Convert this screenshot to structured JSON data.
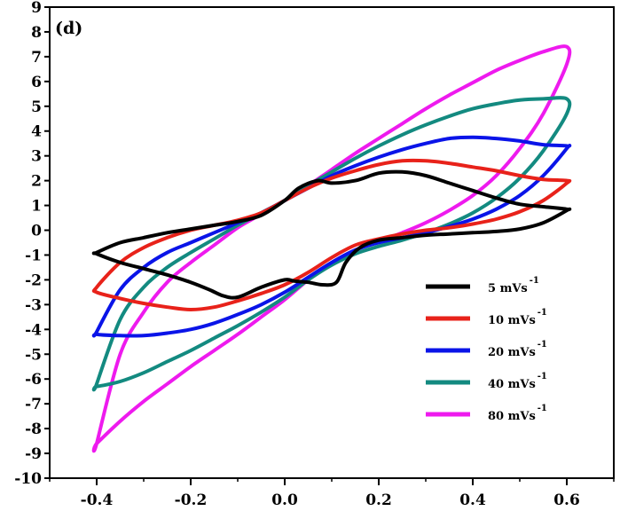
{
  "panel_label": "(d)",
  "chart_data": {
    "type": "line",
    "title": "",
    "xlabel": "",
    "ylabel": "",
    "xlim": [
      -0.5,
      0.7
    ],
    "ylim": [
      -10,
      9
    ],
    "x_ticks": [
      -0.4,
      -0.2,
      0.0,
      0.2,
      0.4,
      0.6
    ],
    "x_tick_labels": [
      "-0.4",
      "-0.2",
      "0.0",
      "0.2",
      "0.4",
      "0.6"
    ],
    "y_ticks": [
      -10,
      -9,
      -8,
      -7,
      -6,
      -5,
      -4,
      -3,
      -2,
      -1,
      0,
      1,
      2,
      3,
      4,
      5,
      6,
      7,
      8,
      9
    ],
    "y_tick_labels": [
      "-10",
      "-9",
      "-8",
      "-7",
      "-6",
      "-5",
      "-4",
      "-3",
      "-2",
      "-1",
      "0",
      "1",
      "2",
      "3",
      "4",
      "5",
      "6",
      "7",
      "8",
      "9"
    ],
    "grid": false,
    "legend_position": "lower-right",
    "series": [
      {
        "name": "5 mVs",
        "superscript": "-1",
        "color": "#000000",
        "x": [
          -0.4,
          -0.35,
          -0.3,
          -0.25,
          -0.2,
          -0.15,
          -0.1,
          -0.05,
          0.0,
          0.03,
          0.07,
          0.1,
          0.15,
          0.2,
          0.25,
          0.3,
          0.35,
          0.4,
          0.45,
          0.5,
          0.55,
          0.6,
          0.6,
          0.55,
          0.5,
          0.45,
          0.4,
          0.35,
          0.3,
          0.25,
          0.2,
          0.16,
          0.13,
          0.11,
          0.08,
          0.05,
          0.02,
          0.0,
          -0.05,
          -0.1,
          -0.13,
          -0.16,
          -0.2,
          -0.25,
          -0.3,
          -0.35,
          -0.4
        ],
        "y": [
          -0.9,
          -0.5,
          -0.3,
          -0.1,
          0.05,
          0.2,
          0.35,
          0.6,
          1.2,
          1.7,
          2.0,
          1.9,
          2.0,
          2.3,
          2.35,
          2.2,
          1.9,
          1.6,
          1.3,
          1.05,
          0.95,
          0.85,
          0.8,
          0.3,
          0.05,
          -0.05,
          -0.1,
          -0.15,
          -0.2,
          -0.3,
          -0.4,
          -0.7,
          -1.3,
          -2.1,
          -2.2,
          -2.1,
          -2.05,
          -2.0,
          -2.3,
          -2.7,
          -2.65,
          -2.4,
          -2.1,
          -1.8,
          -1.55,
          -1.3,
          -0.95
        ]
      },
      {
        "name": "10 mVs",
        "superscript": "-1",
        "color": "#e8221a",
        "x": [
          -0.4,
          -0.35,
          -0.3,
          -0.25,
          -0.2,
          -0.15,
          -0.1,
          -0.05,
          0.0,
          0.05,
          0.1,
          0.15,
          0.2,
          0.25,
          0.3,
          0.35,
          0.4,
          0.45,
          0.5,
          0.55,
          0.6,
          0.6,
          0.55,
          0.5,
          0.45,
          0.4,
          0.35,
          0.3,
          0.25,
          0.2,
          0.15,
          0.1,
          0.05,
          0.0,
          -0.05,
          -0.1,
          -0.15,
          -0.2,
          -0.25,
          -0.3,
          -0.35,
          -0.4
        ],
        "y": [
          -2.3,
          -1.3,
          -0.7,
          -0.3,
          0.0,
          0.2,
          0.4,
          0.7,
          1.2,
          1.7,
          2.1,
          2.4,
          2.65,
          2.8,
          2.8,
          2.7,
          2.55,
          2.4,
          2.2,
          2.05,
          2.0,
          1.9,
          1.2,
          0.75,
          0.45,
          0.25,
          0.1,
          0.0,
          -0.15,
          -0.35,
          -0.6,
          -1.1,
          -1.7,
          -2.2,
          -2.55,
          -2.85,
          -3.1,
          -3.2,
          -3.1,
          -2.95,
          -2.75,
          -2.5
        ]
      },
      {
        "name": "20 mVs",
        "superscript": "-1",
        "color": "#0a14e8",
        "x": [
          -0.4,
          -0.35,
          -0.3,
          -0.25,
          -0.2,
          -0.15,
          -0.1,
          -0.05,
          0.0,
          0.05,
          0.1,
          0.15,
          0.2,
          0.25,
          0.3,
          0.35,
          0.4,
          0.45,
          0.5,
          0.55,
          0.6,
          0.6,
          0.55,
          0.5,
          0.45,
          0.4,
          0.35,
          0.3,
          0.25,
          0.2,
          0.15,
          0.1,
          0.05,
          0.0,
          -0.05,
          -0.1,
          -0.15,
          -0.2,
          -0.25,
          -0.3,
          -0.35,
          -0.4
        ],
        "y": [
          -4.1,
          -2.4,
          -1.5,
          -0.9,
          -0.5,
          -0.1,
          0.3,
          0.7,
          1.2,
          1.7,
          2.2,
          2.6,
          2.95,
          3.25,
          3.5,
          3.7,
          3.75,
          3.7,
          3.6,
          3.45,
          3.4,
          3.3,
          2.2,
          1.4,
          0.85,
          0.45,
          0.15,
          -0.1,
          -0.3,
          -0.5,
          -0.8,
          -1.3,
          -1.9,
          -2.5,
          -3.0,
          -3.4,
          -3.75,
          -4.0,
          -4.15,
          -4.25,
          -4.25,
          -4.2
        ]
      },
      {
        "name": "40 mVs",
        "superscript": "-1",
        "color": "#138a80",
        "x": [
          -0.4,
          -0.35,
          -0.3,
          -0.25,
          -0.2,
          -0.15,
          -0.1,
          -0.05,
          0.0,
          0.05,
          0.1,
          0.15,
          0.2,
          0.25,
          0.3,
          0.35,
          0.4,
          0.45,
          0.5,
          0.55,
          0.6,
          0.6,
          0.55,
          0.5,
          0.45,
          0.4,
          0.35,
          0.3,
          0.25,
          0.2,
          0.15,
          0.1,
          0.05,
          0.0,
          -0.05,
          -0.1,
          -0.15,
          -0.2,
          -0.25,
          -0.3,
          -0.35,
          -0.4
        ],
        "y": [
          -6.2,
          -3.6,
          -2.3,
          -1.5,
          -0.9,
          -0.35,
          0.2,
          0.7,
          1.2,
          1.8,
          2.35,
          2.9,
          3.4,
          3.85,
          4.25,
          4.6,
          4.9,
          5.1,
          5.25,
          5.3,
          5.3,
          4.7,
          3.2,
          2.1,
          1.3,
          0.7,
          0.25,
          -0.1,
          -0.4,
          -0.65,
          -0.95,
          -1.4,
          -2.0,
          -2.7,
          -3.3,
          -3.85,
          -4.35,
          -4.85,
          -5.3,
          -5.75,
          -6.1,
          -6.3
        ]
      },
      {
        "name": "80 mVs",
        "superscript": "-1",
        "color": "#ee1aee",
        "x": [
          -0.4,
          -0.35,
          -0.3,
          -0.25,
          -0.2,
          -0.15,
          -0.1,
          -0.05,
          0.0,
          0.05,
          0.1,
          0.15,
          0.2,
          0.25,
          0.3,
          0.35,
          0.4,
          0.45,
          0.5,
          0.55,
          0.6,
          0.6,
          0.55,
          0.5,
          0.45,
          0.4,
          0.35,
          0.3,
          0.25,
          0.2,
          0.15,
          0.1,
          0.05,
          0.0,
          -0.05,
          -0.1,
          -0.15,
          -0.2,
          -0.25,
          -0.3,
          -0.35,
          -0.4
        ],
        "y": [
          -8.6,
          -5.0,
          -3.3,
          -2.1,
          -1.3,
          -0.6,
          0.1,
          0.65,
          1.2,
          1.8,
          2.45,
          3.1,
          3.7,
          4.3,
          4.9,
          5.45,
          5.95,
          6.45,
          6.85,
          7.2,
          7.4,
          6.7,
          4.7,
          3.3,
          2.2,
          1.4,
          0.8,
          0.3,
          -0.1,
          -0.45,
          -0.8,
          -1.3,
          -2.0,
          -2.8,
          -3.5,
          -4.2,
          -4.85,
          -5.5,
          -6.2,
          -6.9,
          -7.7,
          -8.6
        ]
      }
    ]
  }
}
